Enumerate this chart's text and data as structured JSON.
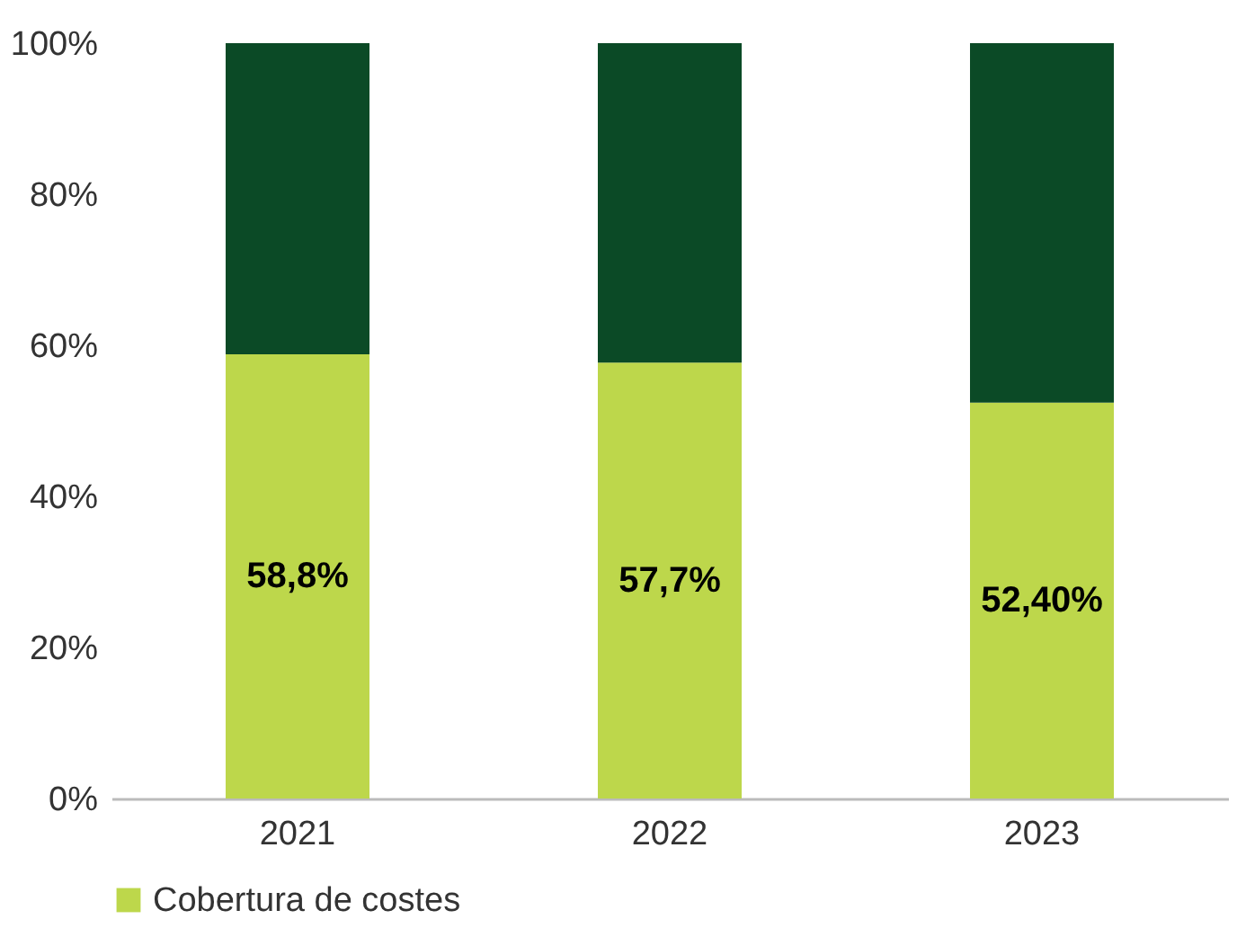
{
  "chart_data": {
    "type": "bar",
    "stacked": true,
    "categories": [
      "2021",
      "2022",
      "2023"
    ],
    "series": [
      {
        "name": "Cobertura de costes",
        "color": "#bdd74b",
        "values": [
          58.8,
          57.7,
          52.4
        ],
        "value_labels": [
          "58,8%",
          "57,7%",
          "52,40%"
        ]
      },
      {
        "color": "#0b4a26",
        "values": [
          41.2,
          42.3,
          47.6
        ]
      }
    ],
    "ylim": [
      0,
      100
    ],
    "yticks": [
      {
        "value": 0,
        "label": "0%"
      },
      {
        "value": 20,
        "label": "20%"
      },
      {
        "value": 40,
        "label": "40%"
      },
      {
        "value": 60,
        "label": "60%"
      },
      {
        "value": 80,
        "label": "80%"
      },
      {
        "value": 100,
        "label": "100%"
      }
    ],
    "grid": false,
    "legend": "bottom"
  }
}
